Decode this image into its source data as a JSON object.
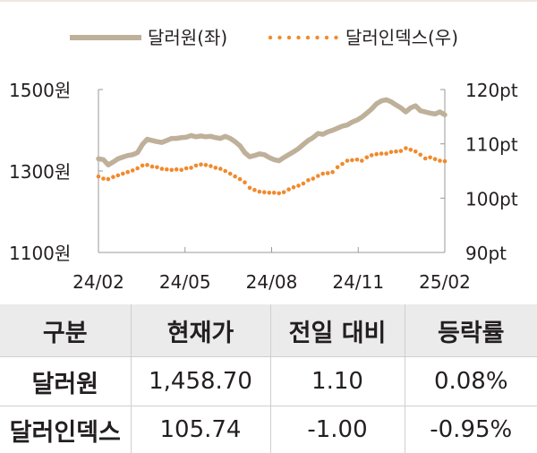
{
  "chart_data": {
    "type": "line",
    "x_tick_labels": [
      "24/02",
      "24/05",
      "24/08",
      "24/11",
      "25/02"
    ],
    "y_left": {
      "ticks": [
        "1500원",
        "1300원",
        "1100원"
      ],
      "range": [
        1100,
        1500
      ]
    },
    "y_right": {
      "ticks": [
        "120pt",
        "110pt",
        "100pt",
        "90pt"
      ],
      "range": [
        90,
        120
      ]
    },
    "series": [
      {
        "name": "달러원(좌)",
        "axis": "left",
        "style": "solid",
        "color": "#bfb09a",
        "values": [
          1330,
          1328,
          1315,
          1322,
          1330,
          1334,
          1338,
          1340,
          1345,
          1365,
          1378,
          1375,
          1372,
          1370,
          1375,
          1380,
          1380,
          1382,
          1383,
          1387,
          1384,
          1386,
          1384,
          1385,
          1382,
          1380,
          1385,
          1380,
          1372,
          1362,
          1345,
          1335,
          1338,
          1342,
          1340,
          1333,
          1328,
          1325,
          1333,
          1340,
          1347,
          1355,
          1365,
          1375,
          1382,
          1392,
          1390,
          1396,
          1400,
          1405,
          1410,
          1413,
          1420,
          1425,
          1432,
          1442,
          1452,
          1465,
          1472,
          1475,
          1470,
          1462,
          1455,
          1445,
          1455,
          1460,
          1448,
          1445,
          1442,
          1440,
          1445,
          1438
        ]
      },
      {
        "name": "달러인덱스(우)",
        "axis": "right",
        "style": "dotted",
        "color": "#f18a2c",
        "values": [
          104.0,
          103.6,
          103.5,
          103.9,
          104.2,
          104.5,
          104.8,
          105.1,
          105.5,
          106.0,
          106.1,
          105.8,
          105.7,
          105.4,
          105.3,
          105.2,
          105.3,
          105.2,
          105.5,
          105.6,
          106.0,
          106.2,
          106.1,
          105.9,
          105.6,
          105.4,
          105.0,
          104.5,
          104.0,
          103.5,
          102.9,
          101.9,
          101.5,
          101.2,
          101.1,
          101.0,
          101.0,
          100.9,
          101.1,
          101.6,
          102.0,
          102.3,
          102.7,
          103.3,
          103.6,
          104.1,
          104.5,
          104.6,
          104.8,
          105.7,
          106.3,
          106.9,
          107.0,
          107.1,
          106.9,
          107.5,
          107.9,
          108.1,
          108.2,
          108.2,
          108.5,
          108.6,
          108.7,
          109.2,
          108.9,
          108.6,
          108.0,
          107.3,
          107.5,
          107.2,
          106.9,
          106.8
        ]
      }
    ]
  },
  "table": {
    "headers": [
      "구분",
      "현재가",
      "전일 대비",
      "등락률"
    ],
    "rows": [
      [
        "달러원",
        "1,458.70",
        "1.10",
        "0.08%"
      ],
      [
        "달러인덱스",
        "105.74",
        "-1.00",
        "-0.95%"
      ]
    ]
  }
}
